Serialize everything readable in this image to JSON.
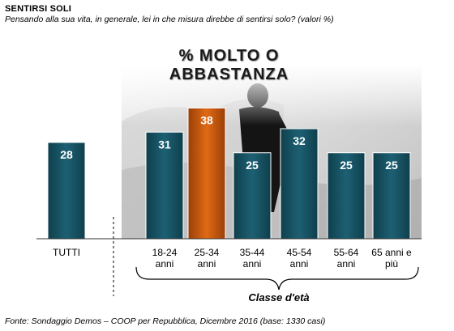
{
  "header": {
    "title": "SENTIRSI SOLI",
    "question": "Pensando alla sua vita, in generale, lei in che misura direbbe di sentirsi solo? (valori %)"
  },
  "chart_heading": "% MOLTO O ABBASTANZA",
  "group_label": "Classe d'età",
  "source": "Fonte: Sondaggio Demos – COOP per Repubblica, Dicembre 2016 (base: 1330 casi)",
  "colors": {
    "bar_default": "#17505f",
    "bar_highlight": "#c2550e",
    "axis": "#333333"
  },
  "chart_data": {
    "type": "bar",
    "categories": [
      [
        "TUTTI"
      ],
      [
        "18-24",
        "anni"
      ],
      [
        "25-34",
        "anni"
      ],
      [
        "35-44",
        "anni"
      ],
      [
        "45-54",
        "anni"
      ],
      [
        "55-64",
        "anni"
      ],
      [
        "65 anni e",
        "più"
      ]
    ],
    "values": [
      28,
      31,
      38,
      25,
      32,
      25,
      25
    ],
    "highlight_index": 2,
    "ylim": [
      0,
      40
    ],
    "grid": false,
    "data_labels": true
  }
}
